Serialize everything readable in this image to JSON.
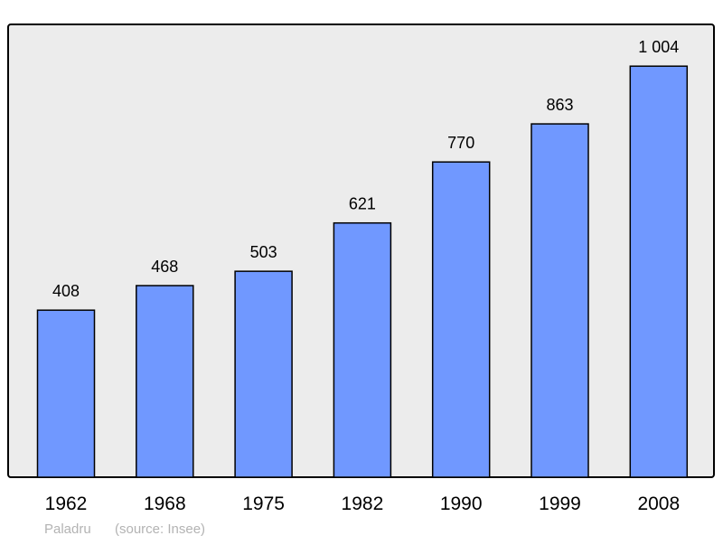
{
  "chart_data": {
    "type": "bar",
    "categories": [
      "1962",
      "1968",
      "1975",
      "1982",
      "1990",
      "1999",
      "2008"
    ],
    "values": [
      408,
      468,
      503,
      621,
      770,
      863,
      1004
    ],
    "value_labels": [
      "408",
      "468",
      "503",
      "621",
      "770",
      "863",
      "1 004"
    ],
    "title": "",
    "xlabel": "",
    "ylabel": "",
    "ylim": [
      0,
      1106
    ],
    "grid": false,
    "legend": "none",
    "caption": {
      "place": "Paladru",
      "source": "(source: Insee)"
    },
    "colors": {
      "bar": "#7098ff",
      "plot_background": "#ececec",
      "border": "#000000",
      "caption": "#b3b3b3"
    }
  }
}
